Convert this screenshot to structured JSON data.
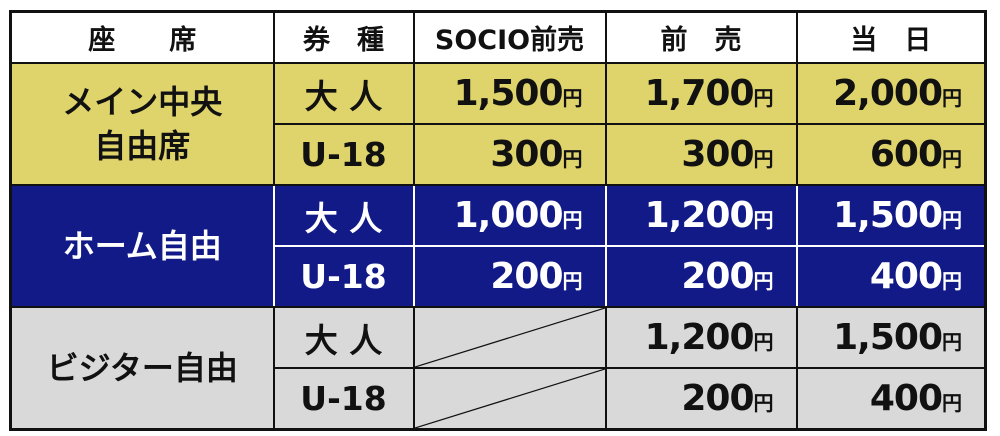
{
  "header": {
    "seat": "座　　席",
    "ticket_type": "券　種",
    "socio_presale": "SOCIO前売",
    "presale": "前　売",
    "same_day": "当　日"
  },
  "currency": "円",
  "sections": [
    {
      "seat": [
        "メイン中央",
        "自由席"
      ],
      "color": "#dfd46b",
      "rows": [
        {
          "type": "大 人",
          "socio": "1,500",
          "presale": "1,700",
          "same_day": "2,000"
        },
        {
          "type": "U-18",
          "socio": "300",
          "presale": "300",
          "same_day": "600"
        }
      ]
    },
    {
      "seat": [
        "ホーム自由"
      ],
      "color": "#121a88",
      "rows": [
        {
          "type": "大 人",
          "socio": "1,000",
          "presale": "1,200",
          "same_day": "1,500"
        },
        {
          "type": "U-18",
          "socio": "200",
          "presale": "200",
          "same_day": "400"
        }
      ]
    },
    {
      "seat": [
        "ビジター自由"
      ],
      "color": "#d9d9d9",
      "rows": [
        {
          "type": "大 人",
          "socio": null,
          "presale": "1,200",
          "same_day": "1,500"
        },
        {
          "type": "U-18",
          "socio": null,
          "presale": "200",
          "same_day": "400"
        }
      ]
    }
  ]
}
